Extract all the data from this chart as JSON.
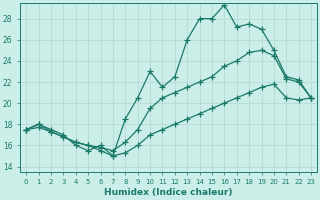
{
  "xlabel": "Humidex (Indice chaleur)",
  "bg_color": "#cceee8",
  "grid_color": "#b8ddd8",
  "line_color": "#1a7a6a",
  "xlim": [
    -0.5,
    23.5
  ],
  "ylim": [
    13.5,
    29.5
  ],
  "xticks": [
    0,
    1,
    2,
    3,
    4,
    5,
    6,
    7,
    8,
    9,
    10,
    11,
    12,
    13,
    14,
    15,
    16,
    17,
    18,
    19,
    20,
    21,
    22,
    23
  ],
  "yticks": [
    14,
    16,
    18,
    20,
    22,
    24,
    26,
    28
  ],
  "line1_x": [
    0,
    1,
    2,
    3,
    4,
    5,
    6,
    7,
    8,
    9,
    10,
    11,
    12,
    13,
    14,
    15,
    16,
    17,
    18,
    19,
    20,
    21,
    22,
    23
  ],
  "line1_y": [
    17.5,
    18.0,
    17.5,
    17.0,
    16.0,
    15.5,
    16.0,
    15.0,
    18.5,
    20.5,
    23.0,
    21.5,
    22.5,
    26.0,
    28.0,
    28.0,
    29.3,
    27.2,
    27.5,
    27.0,
    25.0,
    22.5,
    22.2,
    20.5
  ],
  "line2_x": [
    0,
    1,
    2,
    3,
    4,
    5,
    6,
    7,
    8,
    9,
    10,
    11,
    12,
    13,
    14,
    15,
    16,
    17,
    18,
    19,
    20,
    21,
    22,
    23
  ],
  "line2_y": [
    17.5,
    18.0,
    17.3,
    16.8,
    16.3,
    16.0,
    15.8,
    15.5,
    16.3,
    17.5,
    19.5,
    20.5,
    21.0,
    21.5,
    22.0,
    22.5,
    23.5,
    24.0,
    24.8,
    25.0,
    24.5,
    22.3,
    22.0,
    20.5
  ],
  "line3_x": [
    0,
    1,
    2,
    3,
    4,
    5,
    6,
    7,
    8,
    9,
    10,
    11,
    12,
    13,
    14,
    15,
    16,
    17,
    18,
    19,
    20,
    21,
    22,
    23
  ],
  "line3_y": [
    17.5,
    17.7,
    17.3,
    16.8,
    16.3,
    16.0,
    15.5,
    15.0,
    15.3,
    16.0,
    17.0,
    17.5,
    18.0,
    18.5,
    19.0,
    19.5,
    20.0,
    20.5,
    21.0,
    21.5,
    21.8,
    20.5,
    20.3,
    20.5
  ]
}
